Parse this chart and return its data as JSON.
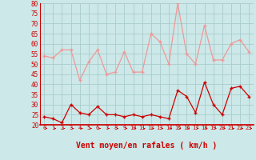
{
  "x": [
    0,
    1,
    2,
    3,
    4,
    5,
    6,
    7,
    8,
    9,
    10,
    11,
    12,
    13,
    14,
    15,
    16,
    17,
    18,
    19,
    20,
    21,
    22,
    23
  ],
  "rafales": [
    54,
    53,
    57,
    57,
    42,
    51,
    57,
    45,
    46,
    56,
    46,
    46,
    65,
    61,
    50,
    80,
    55,
    50,
    69,
    52,
    52,
    60,
    62,
    56
  ],
  "moyen": [
    24,
    23,
    21,
    30,
    26,
    25,
    29,
    25,
    25,
    24,
    25,
    24,
    25,
    24,
    23,
    37,
    34,
    26,
    41,
    30,
    25,
    38,
    39,
    34
  ],
  "xlabel": "Vent moyen/en rafales ( km/h )",
  "ylim_min": 20,
  "ylim_max": 80,
  "yticks": [
    20,
    25,
    30,
    35,
    40,
    45,
    50,
    55,
    60,
    65,
    70,
    75,
    80
  ],
  "bg_color": "#cce8e8",
  "grid_color": "#aacccc",
  "line_color_rafales": "#f09898",
  "line_color_moyen": "#cc0000",
  "xlabel_color": "#cc0000",
  "arrow_color": "#cc0000",
  "axis_color": "#cc0000",
  "tick_color": "#cc0000",
  "marker_size": 3,
  "linewidth": 0.9
}
